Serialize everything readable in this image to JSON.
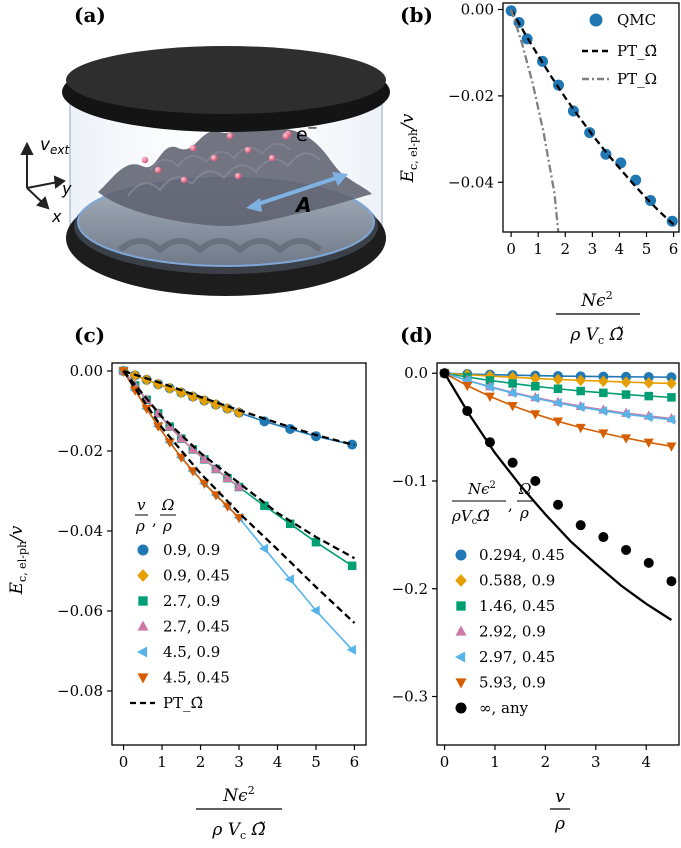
{
  "panel_labels": {
    "a": "(a)",
    "b": "(b)",
    "c": "(c)",
    "d": "(d)"
  },
  "illustration": {
    "v_ext": "v",
    "v_ext_sub": "ext",
    "axis_x": "x",
    "axis_y": "y",
    "electron": "e",
    "electron_sup": "−",
    "vector_potential": "A"
  },
  "chart_data": [
    {
      "id": "b",
      "type": "scatter",
      "xlabel": "Nϵ² / ρ V_c Ω̃",
      "ylabel": "E_c, el-ph / v",
      "xlim": [
        -0.3,
        6.2
      ],
      "ylim": [
        -0.0515,
        0.0015
      ],
      "xticks": [
        0,
        1,
        2,
        3,
        4,
        5,
        6
      ],
      "yticks": [
        0.0,
        -0.02,
        -0.04
      ],
      "ytick_labels": [
        "0.00",
        "−0.02",
        "−0.04"
      ],
      "legend": [
        "QMC",
        "PT_Ω̃",
        "PT_Ω"
      ],
      "series": [
        {
          "name": "QMC",
          "color": "#1f77b4",
          "marker": "circle",
          "x": [
            0,
            0.29,
            0.59,
            1.16,
            1.75,
            2.3,
            2.9,
            3.5,
            4.05,
            4.6,
            5.15,
            5.95
          ],
          "y": [
            -0.0003,
            -0.003,
            -0.0068,
            -0.012,
            -0.0175,
            -0.0235,
            -0.0285,
            -0.0335,
            -0.0355,
            -0.0395,
            -0.0442,
            -0.049
          ]
        },
        {
          "name": "PT_Ω̃",
          "color": "#000000",
          "style": "dashed",
          "x": [
            0,
            0.5,
            1,
            1.5,
            2,
            2.5,
            3,
            3.5,
            4,
            4.5,
            5,
            5.5,
            6
          ],
          "y": [
            0,
            -0.0055,
            -0.0107,
            -0.0157,
            -0.0204,
            -0.0248,
            -0.029,
            -0.033,
            -0.0367,
            -0.0403,
            -0.0437,
            -0.0469,
            -0.0498
          ]
        },
        {
          "name": "PT_Ω",
          "color": "#808080",
          "style": "dashdot",
          "x": [
            0,
            0.4,
            0.8,
            1.2,
            1.6,
            1.75
          ],
          "y": [
            0,
            -0.0078,
            -0.0172,
            -0.0285,
            -0.0425,
            -0.052
          ]
        }
      ]
    },
    {
      "id": "c",
      "type": "line",
      "xlabel": "Nϵ² / ρ V_c Ω̃",
      "ylabel": "E_c, el-ph / v",
      "xlim": [
        -0.3,
        6.3
      ],
      "ylim": [
        -0.0935,
        0.002
      ],
      "xticks": [
        0,
        1,
        2,
        3,
        4,
        5,
        6
      ],
      "yticks": [
        0.0,
        -0.02,
        -0.04,
        -0.06,
        -0.08
      ],
      "ytick_labels": [
        "0.00",
        "−0.02",
        "−0.04",
        "−0.06",
        "−0.08"
      ],
      "legend_title": "v/ρ, Ω/ρ",
      "x": [
        0,
        0.3,
        0.6,
        0.9,
        1.2,
        1.5,
        1.8,
        2.1,
        2.4,
        2.7,
        3.0,
        3.3,
        3.6,
        3.9,
        4.2,
        4.5,
        4.8,
        5.1,
        5.4,
        5.7,
        6.0
      ],
      "series": [
        {
          "name": "0.9, 0.9",
          "color": "#1f77b4",
          "marker": "circle",
          "marker_x": [
            0,
            0.3,
            0.6,
            0.9,
            1.2,
            1.5,
            1.8,
            2.1,
            2.4,
            2.7,
            3.0,
            3.66,
            4.33,
            5.0,
            5.94
          ],
          "marker_y": [
            0,
            -0.0011,
            -0.0022,
            -0.0033,
            -0.0043,
            -0.0054,
            -0.0064,
            -0.0074,
            -0.0084,
            -0.0094,
            -0.0104,
            -0.0126,
            -0.0145,
            -0.0163,
            -0.0184
          ]
        },
        {
          "name": "0.9, 0.45",
          "color": "#e69f00",
          "marker": "diamond",
          "marker_x": [
            0,
            0.3,
            0.6,
            0.9,
            1.2,
            1.5,
            1.8,
            2.1,
            2.4,
            2.7,
            3.0
          ],
          "marker_y": [
            0,
            -0.0011,
            -0.0022,
            -0.0033,
            -0.0043,
            -0.0054,
            -0.0064,
            -0.0074,
            -0.0084,
            -0.0094,
            -0.0104
          ]
        },
        {
          "name": "2.7, 0.9",
          "color": "#009e73",
          "marker": "square",
          "marker_x": [
            0,
            0.3,
            0.6,
            0.9,
            1.2,
            1.5,
            1.8,
            2.1,
            2.4,
            2.7,
            3.0,
            3.66,
            4.33,
            5.0,
            5.94
          ],
          "marker_y": [
            0,
            -0.0036,
            -0.0072,
            -0.0106,
            -0.0139,
            -0.0169,
            -0.0196,
            -0.0221,
            -0.0245,
            -0.0268,
            -0.029,
            -0.0337,
            -0.0382,
            -0.0428,
            -0.0487
          ]
        },
        {
          "name": "2.7, 0.45",
          "color": "#cc79a7",
          "marker": "triangle-up",
          "marker_x": [
            0,
            0.3,
            0.6,
            0.9,
            1.2,
            1.5,
            1.8,
            2.1,
            2.4,
            2.7,
            3.0
          ],
          "marker_y": [
            0,
            -0.0036,
            -0.0072,
            -0.0106,
            -0.0139,
            -0.0169,
            -0.0196,
            -0.0221,
            -0.0245,
            -0.0268,
            -0.029
          ]
        },
        {
          "name": "4.5, 0.9",
          "color": "#56b4e9",
          "marker": "triangle-left",
          "marker_x": [
            0,
            0.3,
            0.6,
            0.9,
            1.2,
            1.5,
            1.8,
            2.1,
            2.4,
            2.7,
            3.0,
            3.66,
            4.33,
            5.0,
            5.94
          ],
          "marker_y": [
            0,
            -0.0048,
            -0.0094,
            -0.0138,
            -0.0178,
            -0.0216,
            -0.025,
            -0.0281,
            -0.031,
            -0.0338,
            -0.0367,
            -0.0444,
            -0.0521,
            -0.0599,
            -0.0697
          ]
        },
        {
          "name": "4.5, 0.45",
          "color": "#d55e00",
          "marker": "triangle-down",
          "marker_x": [
            0,
            0.3,
            0.6,
            0.9,
            1.2,
            1.5,
            1.8,
            2.1,
            2.4,
            2.7,
            3.0
          ],
          "marker_y": [
            0,
            -0.0048,
            -0.0094,
            -0.0138,
            -0.0178,
            -0.0216,
            -0.025,
            -0.0281,
            -0.031,
            -0.0338,
            -0.0367
          ]
        },
        {
          "name": "PT_Ω̃",
          "color": "#000000",
          "style": "dashed",
          "line_only": true,
          "curves": [
            {
              "x": [
                0,
                1,
                2,
                3,
                4,
                5,
                6
              ],
              "y": [
                0,
                -0.0031,
                -0.0065,
                -0.0098,
                -0.013,
                -0.016,
                -0.0185
              ]
            },
            {
              "x": [
                0,
                1,
                2,
                3,
                4,
                5,
                6
              ],
              "y": [
                0,
                -0.0115,
                -0.0205,
                -0.028,
                -0.0355,
                -0.0415,
                -0.0468
              ]
            },
            {
              "x": [
                0,
                1,
                2,
                3,
                4,
                5,
                6
              ],
              "y": [
                0,
                -0.0142,
                -0.0256,
                -0.0355,
                -0.0446,
                -0.054,
                -0.063
              ]
            }
          ]
        }
      ]
    },
    {
      "id": "d",
      "type": "line",
      "xlabel": "v / ρ",
      "ylabel": "",
      "xlim": [
        -0.15,
        4.65
      ],
      "ylim": [
        -0.345,
        0.0095
      ],
      "xticks": [
        0,
        1,
        2,
        3,
        4
      ],
      "yticks": [
        0.0,
        -0.1,
        -0.2,
        -0.3
      ],
      "ytick_labels": [
        "0.0",
        "−0.1",
        "−0.2",
        "−0.3"
      ],
      "legend_title": "Nϵ²/ρV_cΩ̃, Ω/ρ",
      "series": [
        {
          "name": "0.294, 0.45",
          "color": "#1f77b4",
          "marker": "circle",
          "x": [
            0,
            0.45,
            0.9,
            1.35,
            1.8,
            2.25,
            2.7,
            3.15,
            3.6,
            4.05,
            4.5
          ],
          "y": [
            0,
            -0.0007,
            -0.0013,
            -0.0018,
            -0.0022,
            -0.0026,
            -0.0029,
            -0.0031,
            -0.0033,
            -0.0035,
            -0.0037
          ]
        },
        {
          "name": "0.588, 0.9",
          "color": "#e69f00",
          "marker": "diamond",
          "x": [
            0,
            0.45,
            0.9,
            1.35,
            1.8,
            2.25,
            2.7,
            3.15,
            3.6,
            4.05,
            4.5
          ],
          "y": [
            0,
            -0.0013,
            -0.0026,
            -0.0037,
            -0.0048,
            -0.0058,
            -0.0066,
            -0.0074,
            -0.0082,
            -0.0089,
            -0.0095
          ]
        },
        {
          "name": "1.46, 0.45",
          "color": "#009e73",
          "marker": "square",
          "x": [
            0,
            0.45,
            0.9,
            1.35,
            1.8,
            2.25,
            2.7,
            3.15,
            3.6,
            4.05,
            4.5
          ],
          "y": [
            0,
            -0.0035,
            -0.0067,
            -0.0095,
            -0.0121,
            -0.0144,
            -0.0165,
            -0.0182,
            -0.0198,
            -0.0212,
            -0.0224
          ]
        },
        {
          "name": "2.92, 0.9",
          "color": "#cc79a7",
          "marker": "triangle-up",
          "x": [
            0,
            0.45,
            0.9,
            1.35,
            1.8,
            2.25,
            2.7,
            3.15,
            3.6,
            4.05,
            4.5
          ],
          "y": [
            0,
            -0.0065,
            -0.0124,
            -0.0178,
            -0.0225,
            -0.0268,
            -0.0306,
            -0.034,
            -0.037,
            -0.0396,
            -0.042
          ]
        },
        {
          "name": "2.97, 0.45",
          "color": "#56b4e9",
          "marker": "triangle-left",
          "x": [
            0,
            0.45,
            0.9,
            1.35,
            1.8,
            2.25,
            2.7,
            3.15,
            3.6,
            4.05,
            4.5
          ],
          "y": [
            0,
            -0.0067,
            -0.0128,
            -0.0183,
            -0.0232,
            -0.0276,
            -0.0315,
            -0.035,
            -0.038,
            -0.0407,
            -0.0432
          ]
        },
        {
          "name": "5.93, 0.9",
          "color": "#d55e00",
          "marker": "triangle-down",
          "x": [
            0,
            0.45,
            0.9,
            1.35,
            1.8,
            2.25,
            2.7,
            3.15,
            3.6,
            4.05,
            4.5
          ],
          "y": [
            0,
            -0.0115,
            -0.0215,
            -0.0302,
            -0.0378,
            -0.0446,
            -0.0505,
            -0.0556,
            -0.0602,
            -0.0642,
            -0.0678
          ]
        },
        {
          "name": "∞, any",
          "color": "#000000",
          "marker": "circle",
          "x": [
            0,
            0.45,
            0.9,
            1.35,
            1.8,
            2.25,
            2.7,
            3.15,
            3.6,
            4.05,
            4.5
          ],
          "y": [
            0,
            -0.035,
            -0.064,
            -0.083,
            -0.1,
            -0.122,
            -0.141,
            -0.152,
            -0.164,
            -0.176,
            -0.193
          ]
        },
        {
          "name": "curve",
          "color": "#000000",
          "style": "solid",
          "line_only": true,
          "x": [
            0,
            0.5,
            1,
            1.5,
            2,
            2.5,
            3,
            3.5,
            4,
            4.5
          ],
          "y": [
            0,
            -0.039,
            -0.074,
            -0.104,
            -0.131,
            -0.156,
            -0.177,
            -0.197,
            -0.214,
            -0.229
          ]
        }
      ]
    }
  ]
}
